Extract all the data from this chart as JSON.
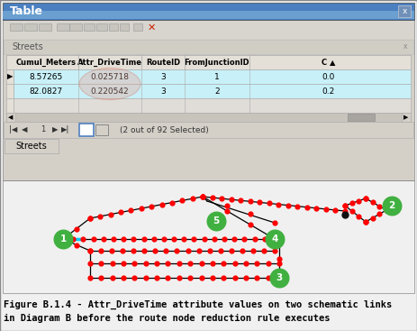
{
  "title": "Table",
  "fig_caption_line1": "Figure B.1.4 - Attr_DriveTime attribute values on two schematic links",
  "fig_caption_line2": "in Diagram B before the route node reduction rule executes",
  "window": {
    "title_text": "Table",
    "title_bg": "#4a7fc0",
    "body_bg": "#d4d0c8",
    "toolbar_bg": "#d8d5ce",
    "streets_label": "Streets"
  },
  "table": {
    "header": [
      "Cumul_Meters",
      "Attr_DriveTime",
      "RouteID",
      "FromJunctionID",
      "C"
    ],
    "rows": [
      {
        "arrow": true,
        "selected": true,
        "cumul": "8.57265",
        "drive": "0.025718",
        "route": "3",
        "from": "1",
        "c": "0.0"
      },
      {
        "arrow": false,
        "selected": true,
        "cumul": "82.0827",
        "drive": "0.220542",
        "route": "3",
        "from": "2",
        "c": "0.2"
      },
      {
        "arrow": false,
        "selected": false,
        "cumul": "",
        "drive": "",
        "route": "",
        "from": "",
        "c": ""
      }
    ],
    "selected_bg": "#c8f0f8",
    "unselected_bg": "#e0ddd8",
    "header_bg": "#e4e0d8"
  },
  "diagram": {
    "bg": "#f0f0f0",
    "dot_color": "#ff0000",
    "line_color": "#000000",
    "cyan_color": "#00ccff",
    "node_color": "#40b040",
    "node_text_color": "#ffffff",
    "black_dot_color": "#111111"
  },
  "caption": {
    "line1": "Figure B.1.4 - Attr_DriveTime attribute values on two schematic links",
    "line2": "in Diagram B before the route node reduction rule executes",
    "fontsize": 7.5,
    "color": "#000000"
  }
}
